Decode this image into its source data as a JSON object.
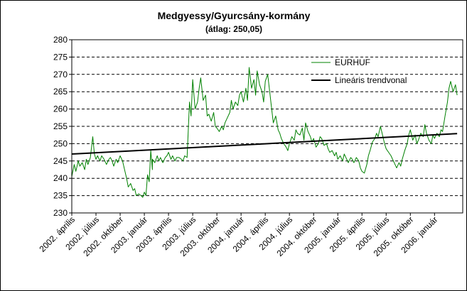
{
  "chart_data": {
    "type": "line",
    "title": "Medgyessy/Gyurcsány-kormány",
    "subtitle": "(átlag: 250,05)",
    "xlabel": "",
    "ylabel": "",
    "ylim": [
      230,
      280
    ],
    "yticks": [
      230,
      235,
      240,
      245,
      250,
      255,
      260,
      265,
      270,
      275,
      280
    ],
    "x_tick_labels": [
      "2002. április",
      "2002. július",
      "2002. október",
      "2003. január",
      "2003. április",
      "2003. július",
      "2003. október",
      "2004. január",
      "2004. április",
      "2004. július",
      "2004. október",
      "2005. január",
      "2005. április",
      "2005. július",
      "2005. október",
      "2006. január"
    ],
    "grid": "horizontal dashed",
    "legend_position": "top-right",
    "series": [
      {
        "name": "EURHUF",
        "color": "#008000",
        "x": [
          0,
          0.3,
          0.5,
          0.8,
          1.0,
          1.3,
          1.6,
          1.8,
          2.0,
          2.3,
          2.6,
          2.8,
          3.0,
          3.2,
          3.5,
          3.7,
          4.0,
          4.3,
          4.6,
          4.8,
          5.0,
          5.2,
          5.5,
          5.7,
          6.0,
          6.3,
          6.6,
          6.8,
          7.0,
          7.3,
          7.6,
          7.8,
          8.0,
          8.3,
          8.6,
          8.8,
          9.0,
          9.2,
          9.4,
          9.6,
          9.8,
          10.0,
          10.0,
          10.3,
          10.6,
          10.8,
          11.0,
          11.3,
          11.6,
          11.8,
          12.0,
          12.3,
          12.5,
          12.8,
          13.0,
          13.3,
          13.6,
          13.8,
          14.0,
          14.3,
          14.6,
          14.8,
          15.0,
          15.3,
          15.6,
          15.8,
          16.0,
          16.3,
          16.6,
          16.8,
          17.0,
          17.3,
          17.6,
          17.8,
          18.0,
          18.3,
          18.6,
          18.8,
          19.0,
          19.3,
          19.6,
          19.8,
          20.0,
          20.3,
          20.6,
          20.8,
          21.0,
          21.3,
          21.6,
          21.8,
          22.0,
          22.3,
          22.6,
          22.8,
          23.0,
          23.3,
          23.6,
          23.8,
          24.0,
          24.3,
          24.6,
          24.8,
          25.0,
          25.3,
          25.6,
          25.8,
          26.0,
          26.3,
          26.6,
          26.8,
          27.0,
          27.3,
          27.6,
          27.8,
          28.0,
          28.3,
          28.6,
          28.8,
          29.0,
          29.3,
          29.6,
          29.8,
          30.0,
          30.3,
          30.6,
          30.8,
          31.0,
          31.3,
          31.6,
          31.8,
          32.0,
          32.3,
          32.6,
          32.8,
          33.0,
          33.3,
          33.6,
          33.8,
          34.0,
          34.3,
          34.6,
          34.8,
          35.0,
          35.3,
          35.6,
          35.8,
          36.0,
          36.3,
          36.6,
          36.8,
          37.0,
          37.3,
          37.6,
          37.8,
          38.0,
          38.3,
          38.6,
          38.8,
          39.0,
          39.3,
          39.6,
          39.8,
          40.0,
          40.3,
          40.6,
          40.8,
          41.0,
          41.3,
          41.6,
          41.8,
          42.0,
          42.3,
          42.6,
          42.8,
          43.0,
          43.3,
          43.6,
          43.8,
          44.0,
          44.3,
          44.6,
          44.8,
          45.0,
          45.3,
          45.6,
          45.8,
          46.0,
          46.3,
          46.6,
          46.8,
          47.0,
          47.3,
          47.6,
          47.8
        ],
        "values": [
          240.5,
          244.0,
          242.0,
          245.0,
          243.5,
          244.5,
          242.5,
          245.5,
          244.0,
          246.0,
          252.0,
          247.0,
          245.5,
          246.5,
          245.0,
          246.5,
          245.5,
          244.0,
          245.5,
          246.0,
          245.0,
          243.5,
          245.5,
          244.5,
          246.5,
          245.0,
          242.0,
          240.0,
          237.5,
          238.5,
          236.5,
          237.0,
          235.0,
          235.5,
          235.0,
          234.5,
          236.0,
          235.0,
          241.0,
          239.0,
          248.0,
          242.5,
          245.5,
          244.5,
          246.5,
          245.0,
          246.0,
          244.5,
          246.0,
          246.5,
          247.5,
          245.5,
          246.5,
          245.0,
          246.0,
          246.0,
          245.5,
          245.0,
          246.5,
          246.0,
          262.0,
          258.0,
          268.5,
          260.0,
          262.0,
          266.0,
          269.0,
          262.5,
          264.0,
          258.0,
          258.5,
          256.5,
          259.0,
          255.0,
          254.5,
          253.5,
          255.0,
          254.0,
          256.0,
          257.5,
          259.0,
          262.5,
          260.0,
          262.0,
          261.0,
          264.0,
          265.0,
          262.0,
          266.0,
          262.5,
          272.0,
          266.0,
          268.5,
          264.0,
          271.0,
          267.0,
          265.0,
          262.0,
          268.0,
          270.0,
          264.0,
          260.0,
          256.0,
          258.0,
          254.0,
          253.0,
          251.5,
          250.0,
          249.0,
          248.0,
          250.0,
          252.0,
          251.0,
          254.0,
          253.0,
          252.5,
          254.5,
          251.0,
          256.0,
          253.5,
          252.0,
          250.5,
          251.5,
          249.0,
          250.0,
          252.0,
          251.5,
          249.5,
          250.0,
          248.5,
          247.5,
          248.0,
          246.5,
          247.5,
          245.5,
          246.5,
          245.0,
          247.0,
          246.0,
          244.5,
          246.0,
          245.5,
          244.5,
          246.0,
          245.0,
          243.0,
          242.0,
          241.5,
          244.0,
          246.5,
          248.0,
          250.5,
          251.5,
          253.0,
          252.0,
          255.0,
          252.0,
          250.0,
          248.5,
          247.5,
          246.5,
          245.5,
          244.5,
          243.0,
          244.5,
          243.5,
          245.5,
          248.0,
          250.0,
          252.5,
          254.0,
          251.0,
          252.5,
          250.0,
          251.0,
          253.0,
          252.0,
          255.5,
          253.0,
          251.0,
          250.0,
          252.5,
          251.5,
          253.0,
          252.0,
          254.0,
          253.5,
          258.0,
          262.0,
          266.0,
          268.0,
          265.0,
          267.0,
          264.0
        ]
      },
      {
        "name": "Lineáris trendvonal",
        "color": "#000000",
        "x": [
          0,
          47.8
        ],
        "values": [
          247.0,
          252.9
        ]
      }
    ]
  }
}
